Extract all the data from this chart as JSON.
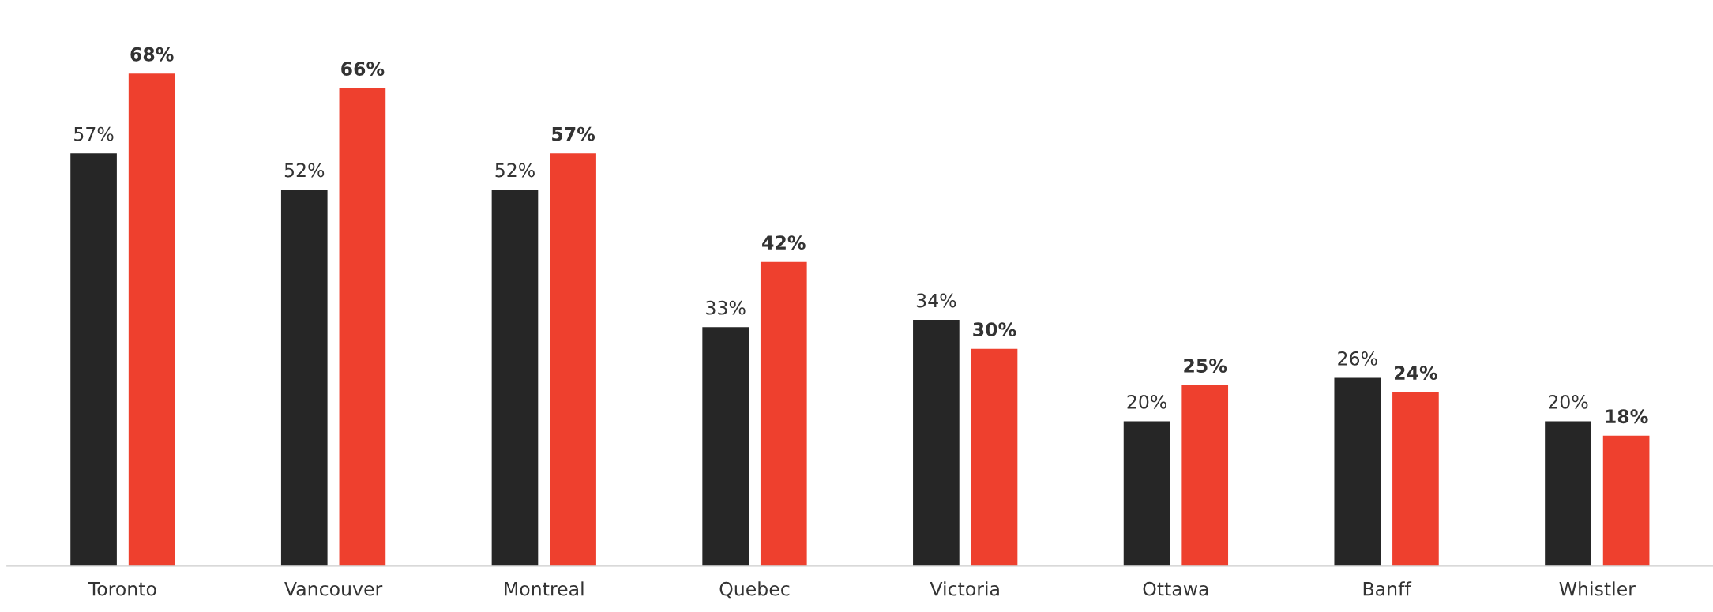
{
  "chart_data": {
    "type": "bar",
    "categories": [
      "Toronto",
      "Vancouver",
      "Montreal",
      "Quebec",
      "Victoria",
      "Ottawa",
      "Banff",
      "Whistler"
    ],
    "series": [
      {
        "color": "#262626",
        "values": [
          57,
          52,
          52,
          33,
          34,
          20,
          26,
          20
        ],
        "value_labels": [
          "57%",
          "52%",
          "52%",
          "33%",
          "34%",
          "20%",
          "26%",
          "20%"
        ]
      },
      {
        "color": "#ee402e",
        "values": [
          68,
          66,
          57,
          42,
          30,
          25,
          24,
          18
        ],
        "value_labels": [
          "68%",
          "66%",
          "57%",
          "42%",
          "30%",
          "25%",
          "24%",
          "18%"
        ]
      }
    ],
    "grid": false,
    "legend": false,
    "tick_labels": "x"
  }
}
